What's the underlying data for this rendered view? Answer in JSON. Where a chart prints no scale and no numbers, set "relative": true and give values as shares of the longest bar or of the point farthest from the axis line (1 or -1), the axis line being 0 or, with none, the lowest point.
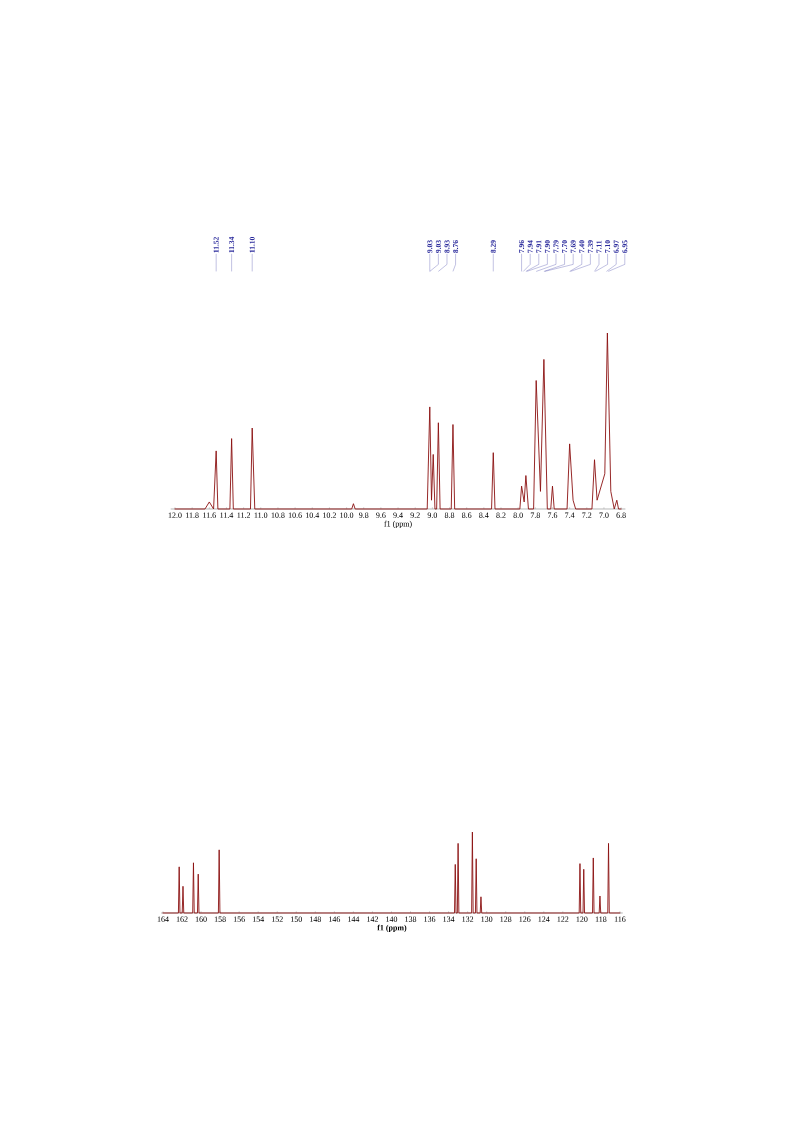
{
  "chart_data": [
    {
      "type": "line",
      "relative": true,
      "xlabel": "f1 (ppm)",
      "xlim": [
        12.05,
        6.75
      ],
      "xticks": [
        {
          "value": 12.0,
          "label": "12.0"
        },
        {
          "value": 11.8,
          "label": "11.8"
        },
        {
          "value": 11.6,
          "label": "11.6"
        },
        {
          "value": 11.4,
          "label": "11.4"
        },
        {
          "value": 11.2,
          "label": "11.2"
        },
        {
          "value": 11.0,
          "label": "11.0"
        },
        {
          "value": 10.8,
          "label": "10.8"
        },
        {
          "value": 10.6,
          "label": "10.6"
        },
        {
          "value": 10.4,
          "label": "10.4"
        },
        {
          "value": 10.2,
          "label": "10.2"
        },
        {
          "value": 10.0,
          "label": "10.0"
        },
        {
          "value": 9.8,
          "label": "9.8"
        },
        {
          "value": 9.6,
          "label": "9.6"
        },
        {
          "value": 9.4,
          "label": "9.4"
        },
        {
          "value": 9.2,
          "label": "9.2"
        },
        {
          "value": 9.0,
          "label": "9.0"
        },
        {
          "value": 8.8,
          "label": "8.8"
        },
        {
          "value": 8.6,
          "label": "8.6"
        },
        {
          "value": 8.4,
          "label": "8.4"
        },
        {
          "value": 8.2,
          "label": "8.2"
        },
        {
          "value": 8.0,
          "label": "8.0"
        },
        {
          "value": 7.8,
          "label": "7.8"
        },
        {
          "value": 7.6,
          "label": "7.6"
        },
        {
          "value": 7.4,
          "label": "7.4"
        },
        {
          "value": 7.2,
          "label": "7.2"
        },
        {
          "value": 7.0,
          "label": "7.0"
        },
        {
          "value": 6.8,
          "label": "6.8"
        }
      ],
      "series": [
        {
          "color": "#8b1010",
          "x": [
            12.0,
            11.65,
            11.6,
            11.55,
            11.52,
            11.5,
            11.36,
            11.34,
            11.32,
            11.12,
            11.1,
            11.07,
            9.94,
            9.92,
            9.9,
            9.06,
            9.03,
            9.01,
            8.99,
            8.97,
            8.95,
            8.93,
            8.91,
            8.78,
            8.76,
            8.74,
            8.31,
            8.29,
            8.27,
            7.98,
            7.96,
            7.93,
            7.91,
            7.88,
            7.82,
            7.79,
            7.74,
            7.7,
            7.66,
            7.62,
            7.6,
            7.58,
            7.43,
            7.4,
            7.36,
            7.33,
            7.14,
            7.11,
            7.08,
            6.99,
            6.96,
            6.92,
            6.88,
            6.85,
            6.83,
            6.8
          ],
          "values": [
            0,
            0,
            0.04,
            0,
            0.33,
            0,
            0,
            0.4,
            0,
            0,
            0.46,
            0,
            0,
            0.03,
            0,
            0,
            0.58,
            0.05,
            0.31,
            0,
            0,
            0.49,
            0,
            0,
            0.48,
            0,
            0,
            0.32,
            0,
            0,
            0.13,
            0.04,
            0.19,
            0,
            0,
            0.73,
            0.1,
            0.85,
            0,
            0,
            0.13,
            0,
            0,
            0.37,
            0.05,
            0,
            0,
            0.28,
            0.05,
            0.2,
            1.0,
            0.1,
            0,
            0.05,
            0,
            0
          ]
        }
      ],
      "annotations": [
        {
          "text": "11.52",
          "x": 11.52
        },
        {
          "text": "11.34",
          "x": 11.34
        },
        {
          "text": "11.10",
          "x": 11.1
        },
        {
          "text": "9.03",
          "x": 9.03
        },
        {
          "text": "9.03",
          "x": 9.03
        },
        {
          "text": "8.93",
          "x": 8.93
        },
        {
          "text": "8.76",
          "x": 8.76
        },
        {
          "text": "8.29",
          "x": 8.29
        },
        {
          "text": "7.96",
          "x": 7.96
        },
        {
          "text": "7.94",
          "x": 7.94
        },
        {
          "text": "7.91",
          "x": 7.91
        },
        {
          "text": "7.90",
          "x": 7.9
        },
        {
          "text": "7.79",
          "x": 7.79
        },
        {
          "text": "7.70",
          "x": 7.7
        },
        {
          "text": "7.69",
          "x": 7.69
        },
        {
          "text": "7.40",
          "x": 7.4
        },
        {
          "text": "7.39",
          "x": 7.39
        },
        {
          "text": "7.11",
          "x": 7.11
        },
        {
          "text": "7.10",
          "x": 7.1
        },
        {
          "text": "6.97",
          "x": 6.97
        },
        {
          "text": "6.95",
          "x": 6.95
        }
      ]
    },
    {
      "type": "line",
      "relative": true,
      "xlabel": "f1 (ppm)",
      "xlim": [
        164.2,
        115.7
      ],
      "xticks": [
        164,
        162,
        160,
        158,
        156,
        154,
        152,
        150,
        148,
        146,
        144,
        142,
        140,
        138,
        136,
        134,
        132,
        130,
        128,
        126,
        124,
        122,
        120,
        118,
        116
      ],
      "series": [
        {
          "color": "#8b1010",
          "x": [
            164.0,
            162.38,
            162.3,
            162.22,
            161.98,
            161.9,
            161.82,
            160.88,
            160.8,
            160.72,
            160.38,
            160.3,
            160.22,
            158.18,
            158.1,
            158.02,
            133.38,
            133.3,
            133.22,
            133.08,
            133.0,
            132.92,
            131.58,
            131.5,
            131.42,
            131.18,
            131.1,
            131.02,
            130.68,
            130.6,
            130.52,
            120.28,
            120.2,
            120.12,
            119.88,
            119.8,
            119.72,
            118.88,
            118.8,
            118.72,
            118.18,
            118.1,
            118.02,
            117.28,
            117.2,
            117.12,
            116.0
          ],
          "values": [
            0,
            0,
            0.57,
            0,
            0,
            0.33,
            0,
            0,
            0.62,
            0,
            0,
            0.48,
            0,
            0,
            0.78,
            0,
            0,
            0.6,
            0,
            0,
            0.86,
            0,
            0,
            1.0,
            0,
            0,
            0.67,
            0,
            0,
            0.2,
            0,
            0,
            0.61,
            0,
            0,
            0.54,
            0,
            0,
            0.68,
            0,
            0,
            0.21,
            0,
            0,
            0.86,
            0,
            0
          ]
        }
      ]
    }
  ]
}
